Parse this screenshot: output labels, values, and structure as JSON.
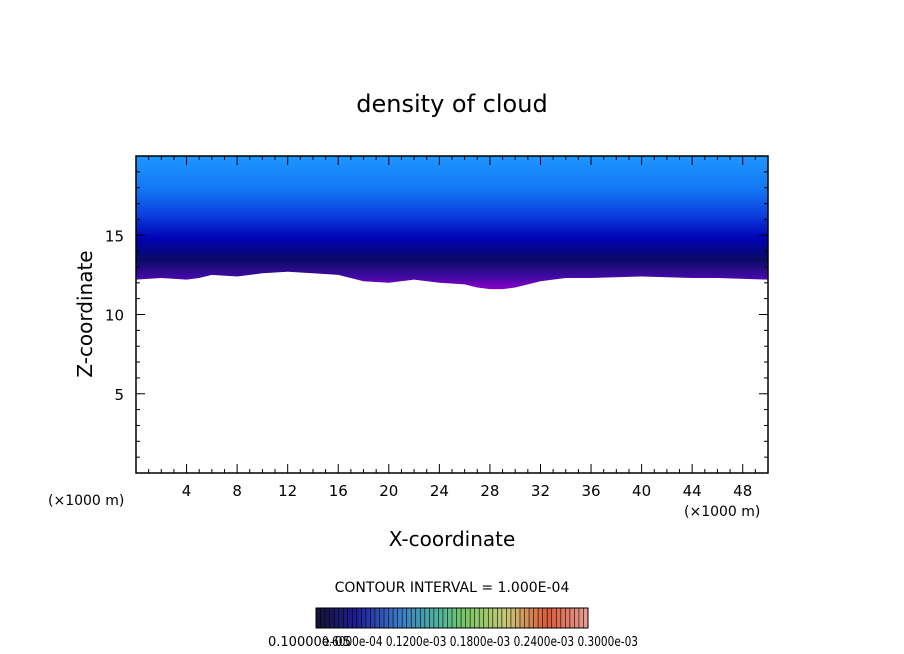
{
  "chart_data": {
    "type": "heatmap",
    "title": "density of cloud",
    "xlabel": "X-coordinate",
    "ylabel": "Z-coordinate",
    "x_unit_left": "(×1000 m)",
    "x_unit_right": "(×1000 m)",
    "xlim": [
      0,
      50
    ],
    "ylim": [
      0,
      20
    ],
    "x_ticks": [
      4,
      8,
      12,
      16,
      20,
      24,
      28,
      32,
      36,
      40,
      44,
      48
    ],
    "y_ticks": [
      5,
      10,
      15
    ],
    "contour_interval_label": "CONTOUR INTERVAL = 1.000E-04",
    "colorbar_labels_text": "0.10000e-05",
    "colorbar_labels_overlap": "0.6000e-04  0.1200e-03  0.1800e-03  0.2400e-03  0.3000e-03",
    "cloud_base_profile": {
      "x": [
        0,
        2,
        4,
        5,
        6,
        8,
        10,
        12,
        14,
        16,
        18,
        20,
        22,
        24,
        26,
        27,
        28,
        29,
        30,
        31,
        32,
        34,
        36,
        40,
        44,
        46,
        50
      ],
      "z_base": [
        12.2,
        12.3,
        12.2,
        12.3,
        12.5,
        12.4,
        12.6,
        12.7,
        12.6,
        12.5,
        12.1,
        12.0,
        12.2,
        12.0,
        11.9,
        11.7,
        11.6,
        11.6,
        11.7,
        11.9,
        12.1,
        12.3,
        12.3,
        12.4,
        12.3,
        12.3,
        12.2
      ]
    },
    "cloud_top": 20,
    "colors": {
      "top": "#1e96ff",
      "mid": "#0000c8",
      "dense": "#0a0a64",
      "base": "#8c00c8"
    }
  }
}
